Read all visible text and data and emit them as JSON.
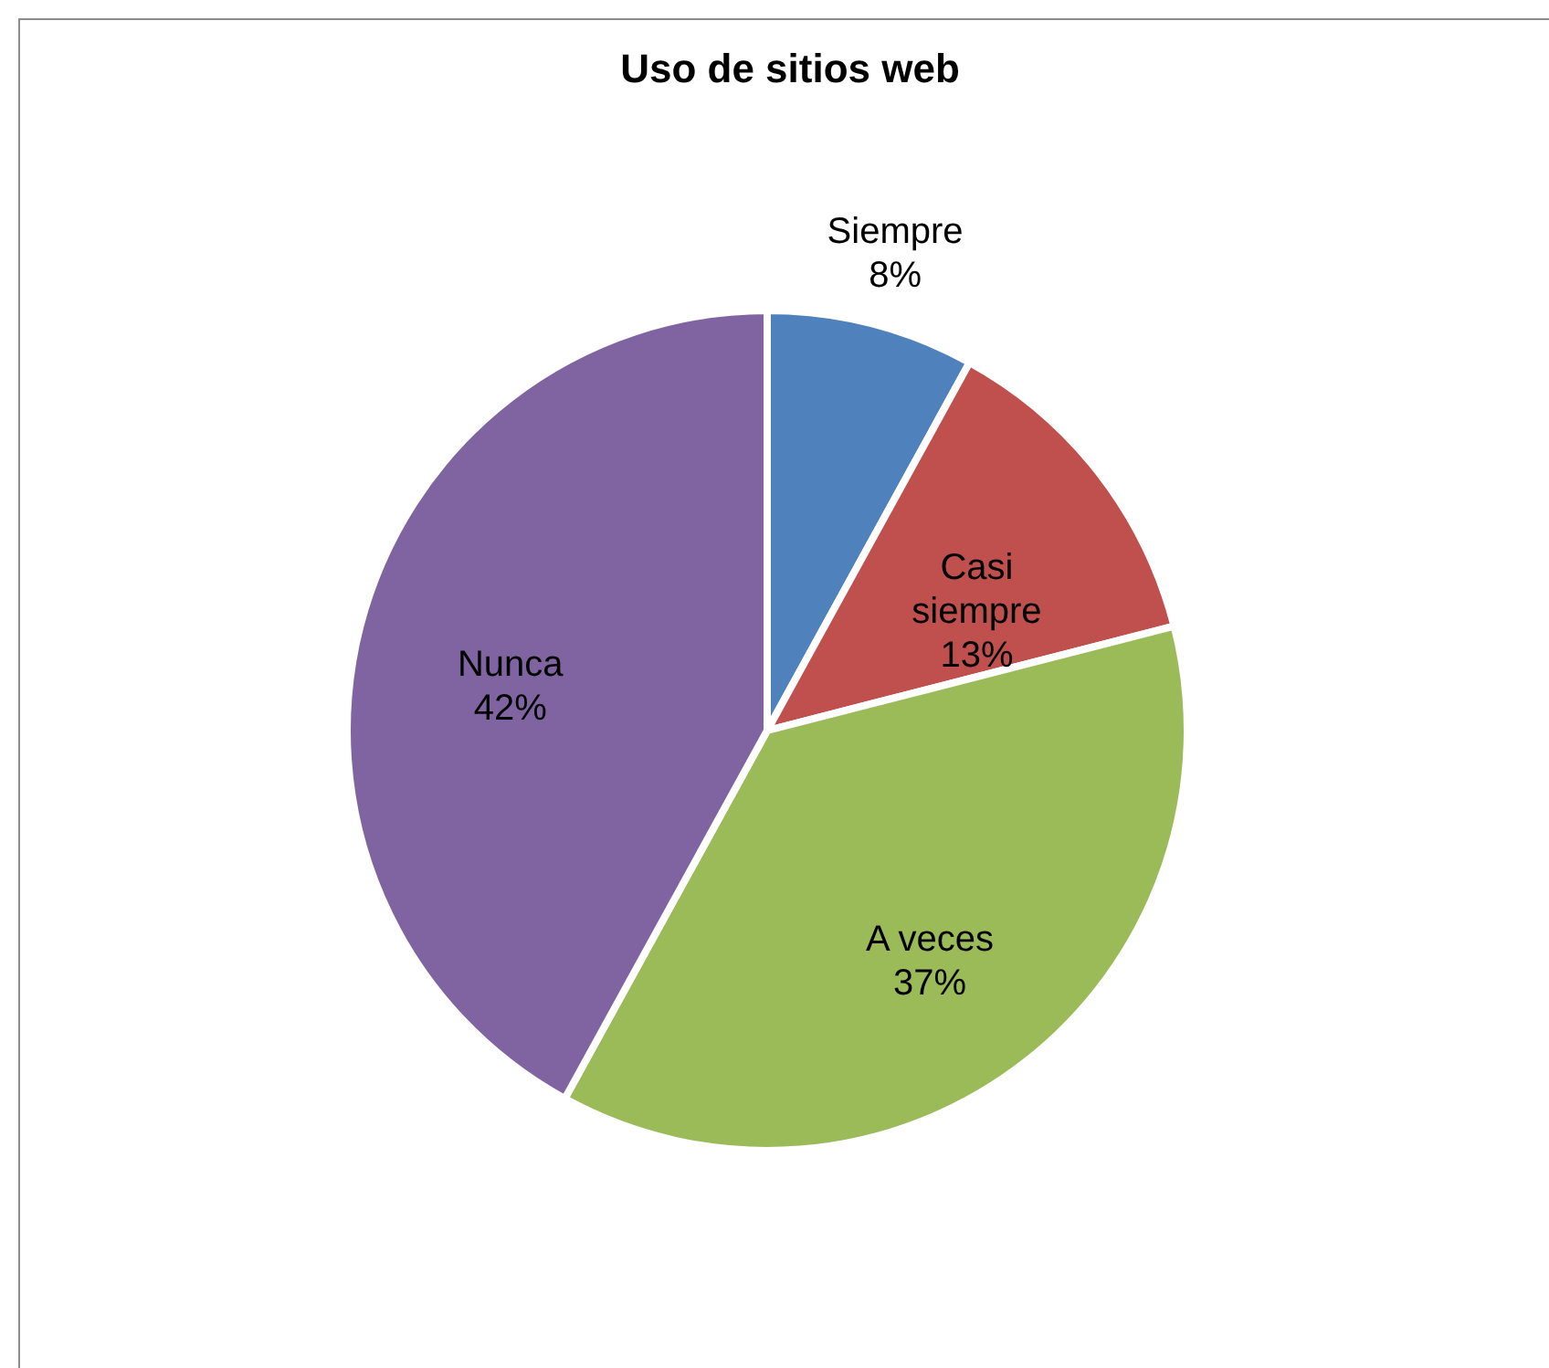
{
  "chart_data": {
    "type": "pie",
    "title": "Uso de sitios web",
    "categories": [
      "Siempre",
      "Casi siempre",
      "A veces",
      "Nunca"
    ],
    "values": [
      8,
      13,
      37,
      42
    ],
    "value_labels": [
      "8%",
      "13%",
      "37%",
      "42%"
    ],
    "colors": [
      "#4f81bd",
      "#c0504d",
      "#9bbb59",
      "#8064a2"
    ]
  }
}
